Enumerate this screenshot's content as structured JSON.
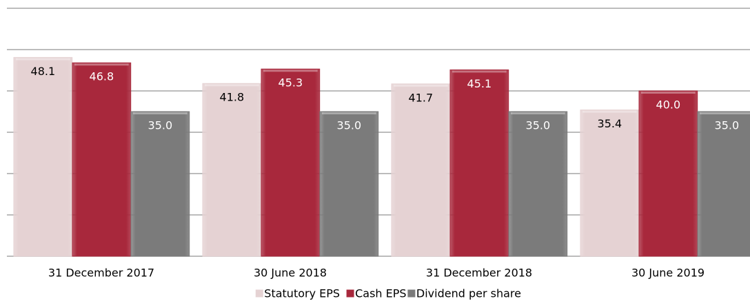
{
  "chart_data": {
    "type": "bar",
    "categories": [
      "31 December 2017",
      "30 June 2018",
      "31 December 2018",
      "30 June 2019"
    ],
    "series": [
      {
        "name": "Statutory EPS",
        "color": "#e5d2d3",
        "label_color": "#000000",
        "values": [
          48.1,
          41.8,
          41.7,
          35.4
        ],
        "value_labels": [
          "48.1",
          "41.8",
          "41.7",
          "35.4"
        ]
      },
      {
        "name": "Cash EPS",
        "color": "#a8283c",
        "label_color": "#ffffff",
        "values": [
          46.8,
          45.3,
          45.1,
          40
        ],
        "value_labels": [
          "46.8",
          "45.3",
          "45.1",
          "40.0"
        ]
      },
      {
        "name": "Dividend per share",
        "color": "#7b7b7b",
        "label_color": "#ffffff",
        "values": [
          35,
          35,
          35,
          35
        ],
        "value_labels": [
          "35.0",
          "35.0",
          "35.0",
          "35.0"
        ]
      }
    ],
    "ylim": [
      0,
      60
    ],
    "yticks": [
      0,
      10,
      20,
      30,
      40,
      50,
      60
    ],
    "grid": true,
    "legend": "bottom"
  }
}
